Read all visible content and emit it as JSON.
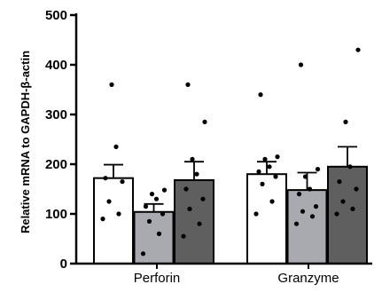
{
  "chart_data": {
    "type": "bar",
    "ylabel": "Relative mRNA to GAPDH-β-actin",
    "xlabel": "",
    "ylim": [
      0,
      500
    ],
    "yticks": [
      "0",
      "100",
      "200",
      "300",
      "400",
      "500"
    ],
    "categories": [
      "Perforin",
      "Granzyme"
    ],
    "series": [
      {
        "color": "#ffffff",
        "values": [
          172,
          180
        ],
        "errors": [
          27,
          25
        ],
        "points": [
          [
            90,
            100,
            125,
            165,
            172,
            235,
            360
          ],
          [
            100,
            125,
            160,
            175,
            185,
            195,
            210,
            215,
            340
          ]
        ]
      },
      {
        "color": "#a9a9b0",
        "values": [
          104,
          148
        ],
        "errors": [
          16,
          35
        ],
        "points": [
          [
            20,
            60,
            85,
            100,
            115,
            130,
            140,
            148
          ],
          [
            80,
            95,
            105,
            115,
            140,
            150,
            175,
            190,
            400
          ]
        ]
      },
      {
        "color": "#5f5f5f",
        "values": [
          168,
          195
        ],
        "errors": [
          37,
          40
        ],
        "points": [
          [
            55,
            80,
            110,
            130,
            150,
            180,
            210,
            285,
            360
          ],
          [
            100,
            110,
            125,
            150,
            165,
            195,
            285,
            430
          ]
        ]
      }
    ],
    "grid": false,
    "legend": "none"
  }
}
